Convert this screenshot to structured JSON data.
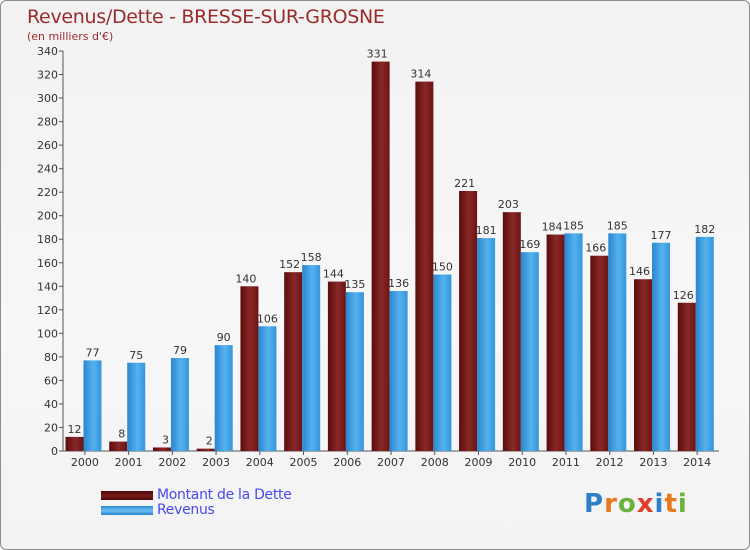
{
  "title": "Revenus/Dette - BRESSE-SUR-GROSNE",
  "subtitle": "(en milliers d'€)",
  "logo": {
    "letters": [
      "P",
      "r",
      "o",
      "x",
      "i",
      "t",
      "i"
    ],
    "colors": [
      "#2f7fc8",
      "#e8781e",
      "#6bb23c",
      "#e23c2c",
      "#2f7fc8",
      "#e8781e",
      "#6bb23c"
    ]
  },
  "legend": [
    {
      "label": "Montant de la Dette",
      "color": "#7a1a1a"
    },
    {
      "label": "Revenus",
      "color": "#3d9ee0"
    }
  ],
  "chart_data": {
    "type": "bar",
    "categories": [
      "2000",
      "2001",
      "2002",
      "2003",
      "2004",
      "2005",
      "2006",
      "2007",
      "2008",
      "2009",
      "2010",
      "2011",
      "2012",
      "2013",
      "2014"
    ],
    "series": [
      {
        "name": "Montant de la Dette",
        "color": "#7a1a1a",
        "values": [
          12,
          8,
          3,
          2,
          140,
          152,
          144,
          331,
          314,
          221,
          203,
          184,
          166,
          146,
          126
        ]
      },
      {
        "name": "Revenus",
        "color": "#3d9ee0",
        "values": [
          77,
          75,
          79,
          90,
          106,
          158,
          135,
          136,
          150,
          181,
          169,
          185,
          185,
          177,
          182
        ]
      }
    ],
    "ylim": [
      0,
      340
    ],
    "yticks": [
      0,
      20,
      40,
      60,
      80,
      100,
      120,
      140,
      160,
      180,
      200,
      220,
      240,
      260,
      280,
      300,
      320,
      340
    ],
    "grid": false
  }
}
